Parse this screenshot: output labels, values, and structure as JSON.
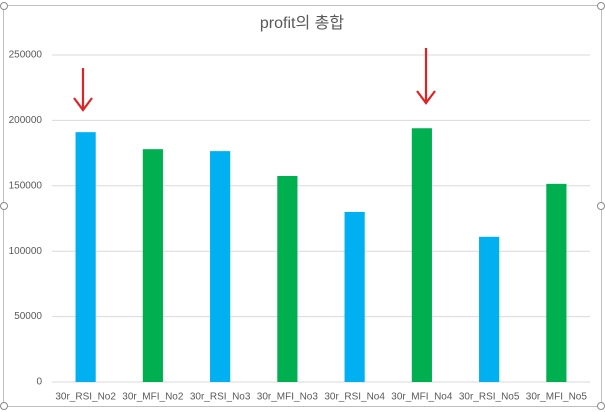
{
  "chart_data": {
    "type": "bar",
    "title": "profit의 총합",
    "categories": [
      "30r_RSI_No2",
      "30r_MFI_No2",
      "30r_RSI_No3",
      "30r_MFI_No3",
      "30r_RSI_No4",
      "30r_MFI_No4",
      "30r_RSI_No5",
      "30r_MFI_No5"
    ],
    "values": [
      191000,
      178000,
      176500,
      157500,
      130000,
      194000,
      111000,
      151500
    ],
    "colors": [
      "#00b0f0",
      "#00b050",
      "#00b0f0",
      "#00b050",
      "#00b0f0",
      "#00b050",
      "#00b0f0",
      "#00b050"
    ],
    "ylim": [
      0,
      250000
    ],
    "yticks": [
      0,
      50000,
      100000,
      150000,
      200000,
      250000
    ],
    "grid": true
  }
}
